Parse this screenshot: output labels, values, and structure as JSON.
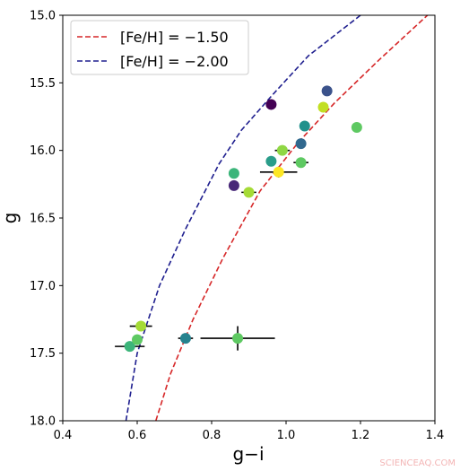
{
  "chart_data": {
    "type": "scatter",
    "title": "",
    "xlabel": "g−i",
    "ylabel": "g",
    "xlim": [
      0.4,
      1.4
    ],
    "ylim": [
      18.0,
      15.0
    ],
    "y_inverted": true,
    "grid": false,
    "legend_position": "top-left",
    "xticks": [
      0.4,
      0.6,
      0.8,
      1.0,
      1.2,
      1.4
    ],
    "xtick_labels": [
      "0.4",
      "0.6",
      "0.8",
      "1.0",
      "1.2",
      "1.4"
    ],
    "yticks": [
      15.0,
      15.5,
      16.0,
      16.5,
      17.0,
      17.5,
      18.0
    ],
    "ytick_labels": [
      "15.0",
      "15.5",
      "16.0",
      "16.5",
      "17.0",
      "17.5",
      "18.0"
    ],
    "series": [
      {
        "name": "[Fe/H] = −1.50",
        "kind": "dashed-line",
        "color": "#d62728",
        "points": [
          [
            0.65,
            18.0
          ],
          [
            0.69,
            17.65
          ],
          [
            0.75,
            17.25
          ],
          [
            0.83,
            16.8
          ],
          [
            0.93,
            16.3
          ],
          [
            1.03,
            15.95
          ],
          [
            1.13,
            15.65
          ],
          [
            1.25,
            15.33
          ],
          [
            1.38,
            15.0
          ]
        ]
      },
      {
        "name": "[Fe/H] = −2.00",
        "kind": "dashed-line",
        "color": "#1f1f8f",
        "points": [
          [
            0.57,
            18.0
          ],
          [
            0.6,
            17.5
          ],
          [
            0.66,
            17.0
          ],
          [
            0.73,
            16.58
          ],
          [
            0.82,
            16.1
          ],
          [
            0.88,
            15.85
          ],
          [
            0.96,
            15.6
          ],
          [
            1.06,
            15.3
          ],
          [
            1.2,
            15.0
          ]
        ]
      }
    ],
    "points": [
      {
        "x": 0.58,
        "y": 17.45,
        "xerr": 0.04,
        "yerr": 0,
        "color": "#3cb57a"
      },
      {
        "x": 0.6,
        "y": 17.4,
        "xerr": 0,
        "yerr": 0,
        "color": "#5ec962"
      },
      {
        "x": 0.61,
        "y": 17.3,
        "xerr": 0.03,
        "yerr": 0,
        "color": "#a5db36"
      },
      {
        "x": 0.73,
        "y": 17.39,
        "xerr": 0.02,
        "yerr": 0,
        "color": "#26828e"
      },
      {
        "x": 0.87,
        "y": 17.39,
        "xerr": 0.1,
        "yerr": 0.09,
        "color": "#5ec962"
      },
      {
        "x": 0.86,
        "y": 16.17,
        "xerr": 0,
        "yerr": 0,
        "color": "#3cb57a"
      },
      {
        "x": 0.86,
        "y": 16.26,
        "xerr": 0,
        "yerr": 0,
        "color": "#482878"
      },
      {
        "x": 0.9,
        "y": 16.31,
        "xerr": 0.02,
        "yerr": 0,
        "color": "#a5db36"
      },
      {
        "x": 0.96,
        "y": 16.08,
        "xerr": 0,
        "yerr": 0,
        "color": "#2a9d8a"
      },
      {
        "x": 0.98,
        "y": 16.16,
        "xerr": 0.05,
        "yerr": 0.04,
        "color": "#fde725"
      },
      {
        "x": 0.99,
        "y": 16.0,
        "xerr": 0.02,
        "yerr": 0,
        "color": "#8fd744"
      },
      {
        "x": 1.04,
        "y": 16.09,
        "xerr": 0.02,
        "yerr": 0,
        "color": "#5ec962"
      },
      {
        "x": 1.04,
        "y": 15.95,
        "xerr": 0,
        "yerr": 0,
        "color": "#31688e"
      },
      {
        "x": 1.05,
        "y": 15.82,
        "xerr": 0,
        "yerr": 0,
        "color": "#21918c"
      },
      {
        "x": 1.1,
        "y": 15.68,
        "xerr": 0,
        "yerr": 0,
        "color": "#c2df23"
      },
      {
        "x": 1.11,
        "y": 15.56,
        "xerr": 0.01,
        "yerr": 0,
        "color": "#3b528b"
      },
      {
        "x": 0.96,
        "y": 15.66,
        "xerr": 0.01,
        "yerr": 0,
        "color": "#440154"
      },
      {
        "x": 1.19,
        "y": 15.83,
        "xerr": 0,
        "yerr": 0,
        "color": "#5ec962"
      }
    ]
  },
  "watermark": "SCIENCEAQ.COM"
}
